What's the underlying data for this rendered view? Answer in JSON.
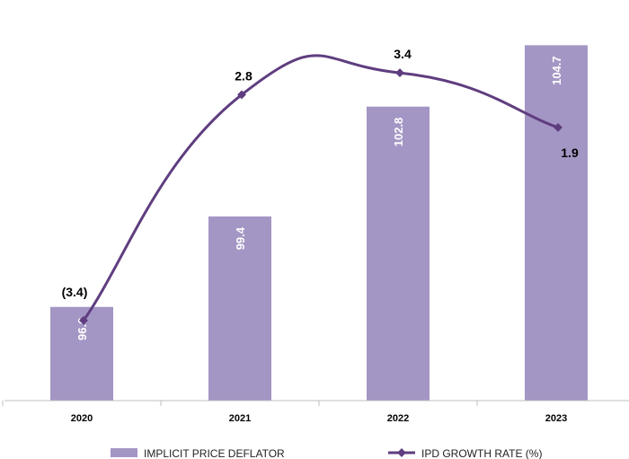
{
  "chart_data": {
    "type": "bar+line",
    "categories": [
      "2020",
      "2021",
      "2022",
      "2023"
    ],
    "series": [
      {
        "name": "IMPLICIT PRICE DEFLATOR",
        "type": "bar",
        "values": [
          96.6,
          99.4,
          102.8,
          104.7
        ],
        "value_labels": [
          "96.6",
          "99.4",
          "102.8",
          "104.7"
        ],
        "color": "#A496C4",
        "ylim": [
          93.7,
          106.1
        ]
      },
      {
        "name": "IPD GROWTH RATE (%)",
        "type": "line",
        "values": [
          -3.4,
          2.8,
          3.4,
          1.9
        ],
        "value_labels": [
          "(3.4)",
          "2.8",
          "3.4",
          "1.9"
        ],
        "color": "#5F3D7F",
        "ylim": [
          -5.6,
          5.4
        ]
      }
    ],
    "title": "",
    "xlabel": "",
    "ylabel": "",
    "grid": false,
    "legend": "bottom"
  }
}
